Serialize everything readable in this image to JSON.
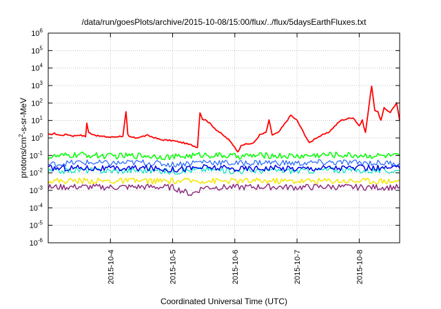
{
  "chart_data": {
    "type": "line",
    "title": "/data/run/goesPlots/archive/2015-10-08/15:00/flux/../flux/5daysEarthFluxes.txt",
    "xlabel": "Coordinated Universal Time (UTC)",
    "ylabel_parts": [
      "protons/cm",
      "2",
      "-s-sr-MeV"
    ],
    "y_scale": "log",
    "ylim": [
      1e-06,
      1000000.0
    ],
    "y_ticks": [
      {
        "exp": "-6"
      },
      {
        "exp": "-5"
      },
      {
        "exp": "-4"
      },
      {
        "exp": "-3"
      },
      {
        "exp": "-2"
      },
      {
        "exp": "-1"
      },
      {
        "exp": "0"
      },
      {
        "exp": "1"
      },
      {
        "exp": "2"
      },
      {
        "exp": "3"
      },
      {
        "exp": "4"
      },
      {
        "exp": "5"
      },
      {
        "exp": "6"
      }
    ],
    "y_tick_base": "10",
    "xlim_days": [
      0,
      5.65
    ],
    "x_ticks": [
      {
        "label": "2015-10-4",
        "day": 1
      },
      {
        "label": "2015-10-5",
        "day": 2
      },
      {
        "label": "2015-10-6",
        "day": 3
      },
      {
        "label": "2015-10-7",
        "day": 4
      },
      {
        "label": "2015-10-8",
        "day": 5
      }
    ],
    "grid": true,
    "legend": "none",
    "series": [
      {
        "color": "#ff0000",
        "width": 1.8,
        "x": [
          0,
          0.1,
          0.2,
          0.3,
          0.4,
          0.5,
          0.6,
          0.62,
          0.65,
          0.8,
          1.0,
          1.2,
          1.25,
          1.28,
          1.3,
          1.4,
          1.6,
          1.8,
          2.0,
          2.2,
          2.4,
          2.44,
          2.48,
          2.55,
          2.7,
          2.9,
          3.0,
          3.05,
          3.1,
          3.3,
          3.4,
          3.5,
          3.55,
          3.6,
          3.7,
          3.9,
          4.0,
          4.2,
          4.3,
          4.5,
          4.7,
          4.9,
          5.0,
          5.05,
          5.1,
          5.2,
          5.25,
          5.3,
          5.35,
          5.4,
          5.5,
          5.6,
          5.65
        ],
        "y": [
          1.5,
          1.8,
          1.4,
          1.6,
          1.3,
          1.5,
          1.2,
          7,
          2,
          1.3,
          1.1,
          1.3,
          30,
          1.5,
          1.2,
          1.0,
          1.4,
          0.8,
          0.7,
          0.5,
          0.3,
          30,
          12,
          10,
          3,
          0.8,
          0.3,
          0.15,
          0.4,
          0.5,
          1.5,
          2,
          10,
          1.5,
          2,
          20,
          10,
          0.5,
          1,
          2,
          10,
          15,
          5,
          10,
          2,
          1000,
          40,
          30,
          10,
          50,
          30,
          100,
          10
        ]
      },
      {
        "color": "#00ff00",
        "width": 1.5,
        "x": [
          0,
          0.5,
          1.0,
          1.5,
          2.0,
          2.5,
          3.0,
          3.5,
          4.0,
          4.5,
          5.0,
          5.65
        ],
        "y": [
          0.08,
          0.11,
          0.09,
          0.1,
          0.08,
          0.11,
          0.09,
          0.1,
          0.09,
          0.11,
          0.1,
          0.09
        ]
      },
      {
        "color": "#00e0c0",
        "width": 1.2,
        "x": [
          0,
          0.5,
          1.0,
          1.5,
          2.0,
          2.5,
          3.0,
          3.5,
          4.0,
          4.5,
          5.0,
          5.65
        ],
        "y": [
          0.012,
          0.015,
          0.013,
          0.014,
          0.012,
          0.016,
          0.013,
          0.014,
          0.013,
          0.015,
          0.014,
          0.013
        ]
      },
      {
        "color": "#1e64ff",
        "width": 1.2,
        "x": [
          0,
          0.5,
          1.0,
          1.5,
          2.0,
          2.5,
          3.0,
          3.5,
          4.0,
          4.5,
          5.0,
          5.65
        ],
        "y": [
          0.03,
          0.04,
          0.035,
          0.04,
          0.03,
          0.045,
          0.035,
          0.04,
          0.035,
          0.04,
          0.038,
          0.035
        ]
      },
      {
        "color": "#0000e6",
        "width": 1.5,
        "x": [
          0,
          0.5,
          1.0,
          1.5,
          2.0,
          2.5,
          3.0,
          3.5,
          4.0,
          4.5,
          5.0,
          5.65
        ],
        "y": [
          0.018,
          0.02,
          0.017,
          0.019,
          0.016,
          0.021,
          0.017,
          0.019,
          0.018,
          0.02,
          0.019,
          0.018
        ]
      },
      {
        "color": "#f5e600",
        "width": 1.5,
        "x": [
          0,
          0.5,
          1.0,
          1.5,
          2.0,
          2.5,
          3.0,
          3.5,
          4.0,
          4.5,
          5.0,
          5.65
        ],
        "y": [
          0.0035,
          0.0036,
          0.0034,
          0.0035,
          0.0033,
          0.0036,
          0.0034,
          0.0035,
          0.0034,
          0.0036,
          0.0035,
          0.0034
        ]
      },
      {
        "color": "#8c2d82",
        "width": 1.5,
        "x": [
          0,
          0.5,
          1.0,
          1.5,
          2.0,
          2.3,
          2.5,
          3.0,
          3.5,
          4.0,
          4.5,
          5.0,
          5.65
        ],
        "y": [
          0.0015,
          0.0016,
          0.0015,
          0.0016,
          0.0015,
          0.0006,
          0.0015,
          0.0015,
          0.0016,
          0.0015,
          0.0016,
          0.0015,
          0.0015
        ]
      }
    ]
  }
}
